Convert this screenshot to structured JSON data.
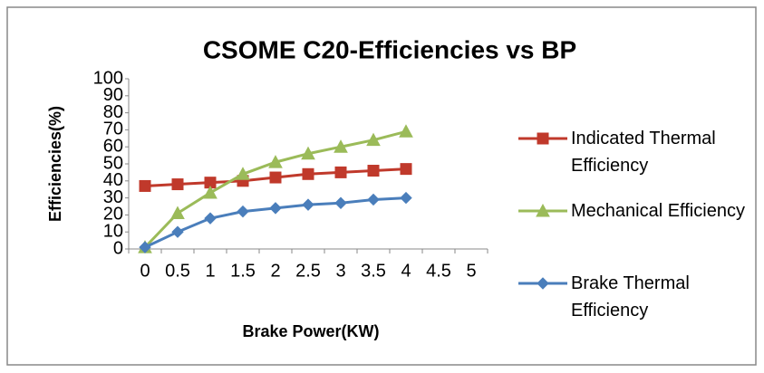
{
  "chart_data": {
    "type": "line",
    "title": "CSOME C20-Efficiencies vs BP",
    "x_label": "Brake Power(KW)",
    "y_label": "Efficiencies(%)",
    "categories": [
      "0",
      "0.5",
      "1",
      "1.5",
      "2",
      "2.5",
      "3",
      "3.5",
      "4",
      "4.5",
      "5"
    ],
    "ylim": [
      0,
      100
    ],
    "yticks": [
      0,
      10,
      20,
      30,
      40,
      50,
      60,
      70,
      80,
      90,
      100
    ],
    "grid": false,
    "legend": "right",
    "series": [
      {
        "name": "Indicated Thermal Efficiency",
        "color": "#c0392b",
        "marker": "square",
        "values": [
          37,
          38,
          39,
          40,
          42,
          44,
          45,
          46,
          47,
          null,
          null
        ]
      },
      {
        "name": "Mechanical Efficiency",
        "color": "#9bbb59",
        "marker": "triangle",
        "values": [
          1,
          21,
          33,
          44,
          51,
          56,
          60,
          64,
          69,
          null,
          null
        ]
      },
      {
        "name": "Brake Thermal Efficiency",
        "color": "#4a7ebb",
        "marker": "diamond",
        "values": [
          1,
          10,
          18,
          22,
          24,
          26,
          27,
          29,
          30,
          null,
          null
        ]
      }
    ]
  }
}
